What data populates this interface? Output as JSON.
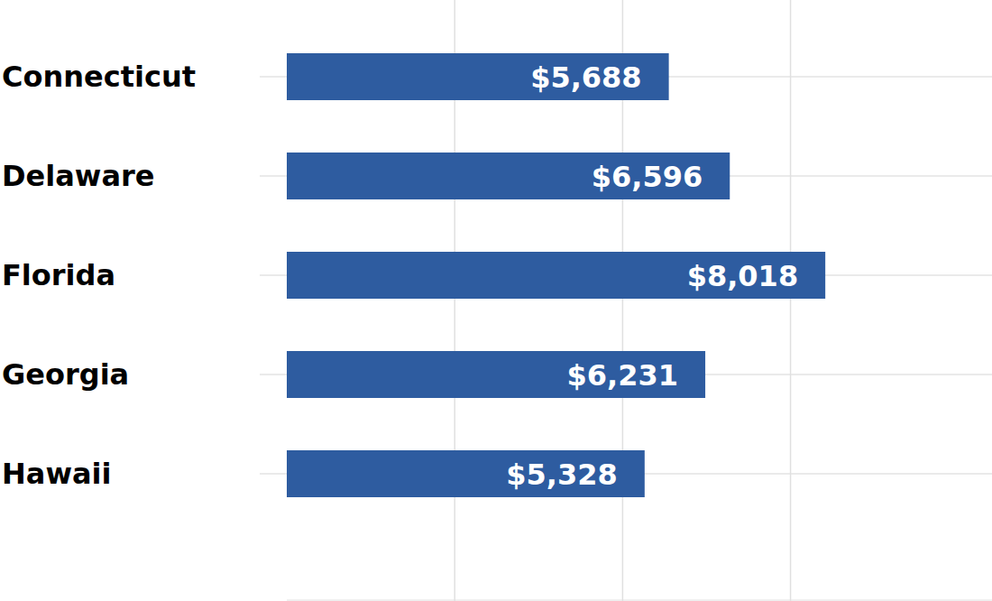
{
  "chart_data": {
    "type": "bar",
    "orientation": "horizontal",
    "categories": [
      "Connecticut",
      "Delaware",
      "Florida",
      "Georgia",
      "Hawaii"
    ],
    "values": [
      5688,
      6596,
      8018,
      6231,
      5328
    ],
    "value_labels": [
      "$5,688",
      "$6,596",
      "$8,018",
      "$6,231",
      "$5,328"
    ],
    "color": "#2e5ca0",
    "xlim": [
      0,
      10500
    ],
    "xticks": [
      2500,
      5000,
      7500
    ],
    "grid": true,
    "data_labels": true,
    "tick_labels": false
  }
}
